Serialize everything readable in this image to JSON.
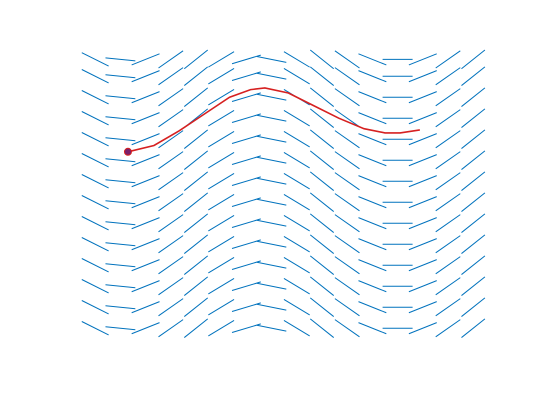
{
  "chart_data": {
    "type": "quiver",
    "xlim": [
      0,
      10
    ],
    "ylim": [
      0,
      7.5
    ],
    "x": [
      0.6,
      1.2,
      1.8,
      2.4,
      3.0,
      3.6,
      4.2,
      4.8,
      5.4,
      6.0,
      6.6,
      7.2,
      7.8,
      8.4,
      9.0,
      9.6
    ],
    "slopes": [
      -0.5,
      -0.1,
      0.4,
      0.7,
      0.8,
      0.6,
      0.3,
      -0.2,
      -0.6,
      -0.8,
      -0.7,
      -0.4,
      0.0,
      0.4,
      0.7,
      0.8
    ],
    "rows": [
      0.4,
      0.9,
      1.4,
      1.9,
      2.4,
      2.9,
      3.4,
      3.9,
      4.4,
      4.9,
      5.4,
      5.9,
      6.4,
      6.8
    ],
    "color": "#0072bd",
    "curve": {
      "color": "#d62020",
      "x": [
        1.38,
        2.0,
        2.6,
        3.2,
        3.8,
        4.3,
        4.64,
        5.2,
        5.8,
        6.4,
        7.0,
        7.5,
        7.86,
        8.33
      ],
      "y": [
        4.6,
        4.75,
        5.1,
        5.5,
        5.9,
        6.08,
        6.12,
        6.0,
        5.7,
        5.4,
        5.15,
        5.05,
        5.05,
        5.12
      ]
    }
  }
}
